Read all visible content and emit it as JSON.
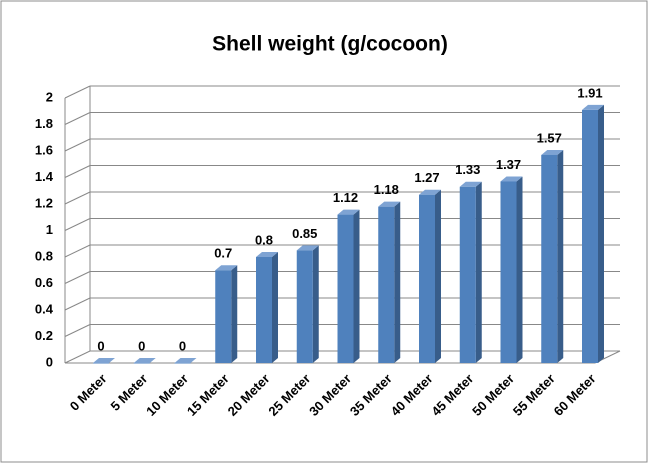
{
  "chart_data": {
    "type": "bar",
    "title": "Shell weight (g/cocoon)",
    "categories": [
      "0 Meter",
      "5 Meter",
      "10 Meter",
      "15 Meter",
      "20 Meter",
      "25 Meter",
      "30 Meter",
      "35 Meter",
      "40 Meter",
      "45 Meter",
      "50 Meter",
      "55 Meter",
      "60 Meter"
    ],
    "values": [
      0,
      0,
      0,
      0.7,
      0.8,
      0.85,
      1.12,
      1.18,
      1.27,
      1.33,
      1.37,
      1.57,
      1.91
    ],
    "color": "#4f81bd",
    "ylim": [
      0,
      2
    ],
    "yticks": [
      0,
      0.2,
      0.4,
      0.6,
      0.8,
      1,
      1.2,
      1.4,
      1.6,
      1.8,
      2
    ],
    "grid": true
  }
}
